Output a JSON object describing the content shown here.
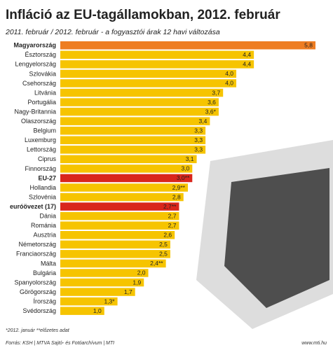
{
  "chart_data": {
    "type": "hbar",
    "title": "Infláció az EU-tagállamokban, 2012. február",
    "subtitle": "2011. február / 2012. február - a fogyasztói árak 12 havi változása",
    "categories": [
      "Magyarország",
      "Észtország",
      "Lengyelország",
      "Szlovákia",
      "Csehország",
      "Litvánia",
      "Portugália",
      "Nagy-Britannia",
      "Olaszország",
      "Belgium",
      "Luxemburg",
      "Lettország",
      "Ciprus",
      "Finnország",
      "EU-27",
      "Hollandia",
      "Szlovénia",
      "euróövezet (17)",
      "Dánia",
      "Románia",
      "Ausztria",
      "Németország",
      "Franciaország",
      "Málta",
      "Bulgária",
      "Spanyolország",
      "Görögország",
      "Írország",
      "Svédország"
    ],
    "values": [
      5.8,
      4.4,
      4.4,
      4.0,
      4.0,
      3.7,
      3.6,
      3.6,
      3.4,
      3.3,
      3.3,
      3.3,
      3.1,
      3.0,
      3.0,
      2.9,
      2.8,
      2.7,
      2.7,
      2.7,
      2.6,
      2.5,
      2.5,
      2.4,
      2.0,
      1.9,
      1.7,
      1.3,
      1.0
    ],
    "value_labels": [
      "5,8",
      "4,4",
      "4,4",
      "4,0",
      "4,0",
      "3,7",
      "3,6",
      "3,6*",
      "3,4",
      "3,3",
      "3,3",
      "3,3",
      "3,1",
      "3,0",
      "3,0**",
      "2,9**",
      "2,8",
      "2,7**",
      "2,7",
      "2,7",
      "2,6",
      "2,5",
      "2,5",
      "2,4**",
      "2,0",
      "1,9",
      "1,7",
      "1,3*",
      "1,0"
    ],
    "color": "#f6c400",
    "colors": [
      "#ee7d22",
      "#f6c400",
      "#f6c400",
      "#f6c400",
      "#f6c400",
      "#f6c400",
      "#f6c400",
      "#f6c400",
      "#f6c400",
      "#f6c400",
      "#f6c400",
      "#f6c400",
      "#f6c400",
      "#f6c400",
      "#d9261c",
      "#f6c400",
      "#f6c400",
      "#d9261c",
      "#f6c400",
      "#f6c400",
      "#f6c400",
      "#f6c400",
      "#f6c400",
      "#f6c400",
      "#f6c400",
      "#f6c400",
      "#f6c400",
      "#f6c400",
      "#f6c400"
    ],
    "footnotes": "*2012. január   **előzetes adat",
    "source": "Forrás: KSH | MTVA Sajtó- és Fotóarchívum | MTI",
    "website": "www.mti.hu"
  }
}
